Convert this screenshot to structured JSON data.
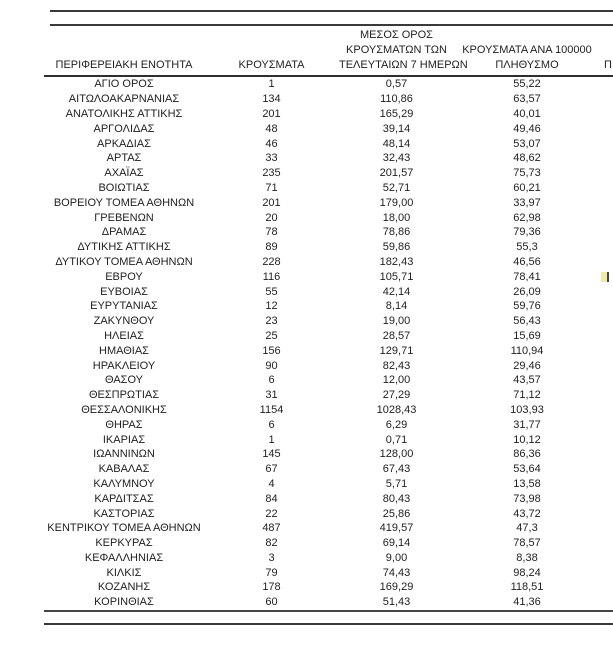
{
  "table": {
    "headers": {
      "col1": "ΠΕΡΙΦΕΡΕΙΑΚΗ ΕΝΟΤΗΤΑ",
      "col2": "ΚΡΟΥΣΜΑΤΑ",
      "col3_line1": "ΜΕΣΟΣ ΟΡΟΣ",
      "col3_line2": "ΚΡΟΥΣΜΑΤΩΝ ΤΩΝ",
      "col3_line3": "ΤΕΛΕΥΤΑΙΩΝ 7 ΗΜΕΡΩΝ",
      "col4_line1": "ΚΡΟΥΣΜΑΤΑ ΑΝΑ 100000",
      "col4_line2": "ΠΛΗΘΥΣΜΟ",
      "col5_clipped": "Π"
    },
    "rows": [
      {
        "region": "ΑΓΙΟ ΟΡΟΣ",
        "cases": "1",
        "avg7": "0,57",
        "per100k": "55,22"
      },
      {
        "region": "ΑΙΤΩΛΟΑΚΑΡΝΑΝΙΑΣ",
        "cases": "134",
        "avg7": "110,86",
        "per100k": "63,57"
      },
      {
        "region": "ΑΝΑΤΟΛΙΚΗΣ ΑΤΤΙΚΗΣ",
        "cases": "201",
        "avg7": "165,29",
        "per100k": "40,01"
      },
      {
        "region": "ΑΡΓΟΛΙΔΑΣ",
        "cases": "48",
        "avg7": "39,14",
        "per100k": "49,46"
      },
      {
        "region": "ΑΡΚΑΔΙΑΣ",
        "cases": "46",
        "avg7": "48,14",
        "per100k": "53,07"
      },
      {
        "region": "ΑΡΤΑΣ",
        "cases": "33",
        "avg7": "32,43",
        "per100k": "48,62"
      },
      {
        "region": "ΑΧΑΪΑΣ",
        "cases": "235",
        "avg7": "201,57",
        "per100k": "75,73"
      },
      {
        "region": "ΒΟΙΩΤΙΑΣ",
        "cases": "71",
        "avg7": "52,71",
        "per100k": "60,21"
      },
      {
        "region": "ΒΟΡΕΙΟΥ ΤΟΜΕΑ ΑΘΗΝΩΝ",
        "cases": "201",
        "avg7": "179,00",
        "per100k": "33,97"
      },
      {
        "region": "ΓΡΕΒΕΝΩΝ",
        "cases": "20",
        "avg7": "18,00",
        "per100k": "62,98"
      },
      {
        "region": "ΔΡΑΜΑΣ",
        "cases": "78",
        "avg7": "78,86",
        "per100k": "79,36"
      },
      {
        "region": "ΔΥΤΙΚΗΣ ΑΤΤΙΚΗΣ",
        "cases": "89",
        "avg7": "59,86",
        "per100k": "55,3"
      },
      {
        "region": "ΔΥΤΙΚΟΥ ΤΟΜΕΑ ΑΘΗΝΩΝ",
        "cases": "228",
        "avg7": "182,43",
        "per100k": "46,56"
      },
      {
        "region": "ΕΒΡΟΥ",
        "cases": "116",
        "avg7": "105,71",
        "per100k": "78,41"
      },
      {
        "region": "ΕΥΒΟΙΑΣ",
        "cases": "55",
        "avg7": "42,14",
        "per100k": "26,09"
      },
      {
        "region": "ΕΥΡΥΤΑΝΙΑΣ",
        "cases": "12",
        "avg7": "8,14",
        "per100k": "59,76"
      },
      {
        "region": "ΖΑΚΥΝΘΟΥ",
        "cases": "23",
        "avg7": "19,00",
        "per100k": "56,43"
      },
      {
        "region": "ΗΛΕΙΑΣ",
        "cases": "25",
        "avg7": "28,57",
        "per100k": "15,69"
      },
      {
        "region": "ΗΜΑΘΙΑΣ",
        "cases": "156",
        "avg7": "129,71",
        "per100k": "110,94"
      },
      {
        "region": "ΗΡΑΚΛΕΙΟΥ",
        "cases": "90",
        "avg7": "82,43",
        "per100k": "29,46"
      },
      {
        "region": "ΘΑΣΟΥ",
        "cases": "6",
        "avg7": "12,00",
        "per100k": "43,57"
      },
      {
        "region": "ΘΕΣΠΡΩΤΙΑΣ",
        "cases": "31",
        "avg7": "27,29",
        "per100k": "71,12"
      },
      {
        "region": "ΘΕΣΣΑΛΟΝΙΚΗΣ",
        "cases": "1154",
        "avg7": "1028,43",
        "per100k": "103,93"
      },
      {
        "region": "ΘΗΡΑΣ",
        "cases": "6",
        "avg7": "6,29",
        "per100k": "31,77"
      },
      {
        "region": "ΙΚΑΡΙΑΣ",
        "cases": "1",
        "avg7": "0,71",
        "per100k": "10,12"
      },
      {
        "region": "ΙΩΑΝΝΙΝΩΝ",
        "cases": "145",
        "avg7": "128,00",
        "per100k": "86,36"
      },
      {
        "region": "ΚΑΒΑΛΑΣ",
        "cases": "67",
        "avg7": "67,43",
        "per100k": "53,64"
      },
      {
        "region": "ΚΑΛΥΜΝΟΥ",
        "cases": "4",
        "avg7": "5,71",
        "per100k": "13,58"
      },
      {
        "region": "ΚΑΡΔΙΤΣΑΣ",
        "cases": "84",
        "avg7": "80,43",
        "per100k": "73,98"
      },
      {
        "region": "ΚΑΣΤΟΡΙΑΣ",
        "cases": "22",
        "avg7": "25,86",
        "per100k": "43,72"
      },
      {
        "region": "ΚΕΝΤΡΙΚΟΥ ΤΟΜΕΑ ΑΘΗΝΩΝ",
        "cases": "487",
        "avg7": "419,57",
        "per100k": "47,3"
      },
      {
        "region": "ΚΕΡΚΥΡΑΣ",
        "cases": "82",
        "avg7": "69,14",
        "per100k": "78,57"
      },
      {
        "region": "ΚΕΦΑΛΛΗΝΙΑΣ",
        "cases": "3",
        "avg7": "9,00",
        "per100k": "8,38"
      },
      {
        "region": "ΚΙΛΚΙΣ",
        "cases": "79",
        "avg7": "74,43",
        "per100k": "98,24"
      },
      {
        "region": "ΚΟΖΑΝΗΣ",
        "cases": "178",
        "avg7": "169,29",
        "per100k": "118,51"
      },
      {
        "region": "ΚΟΡΙΝΘΙΑΣ",
        "cases": "60",
        "avg7": "51,43",
        "per100k": "41,36"
      }
    ]
  },
  "clipped_fragment": {
    "row_region": "ΕΒΡΟΥ",
    "highlight_color": "#f2eca0",
    "bar_color": "#4a4150"
  },
  "rule_color": "#3a3a3a"
}
